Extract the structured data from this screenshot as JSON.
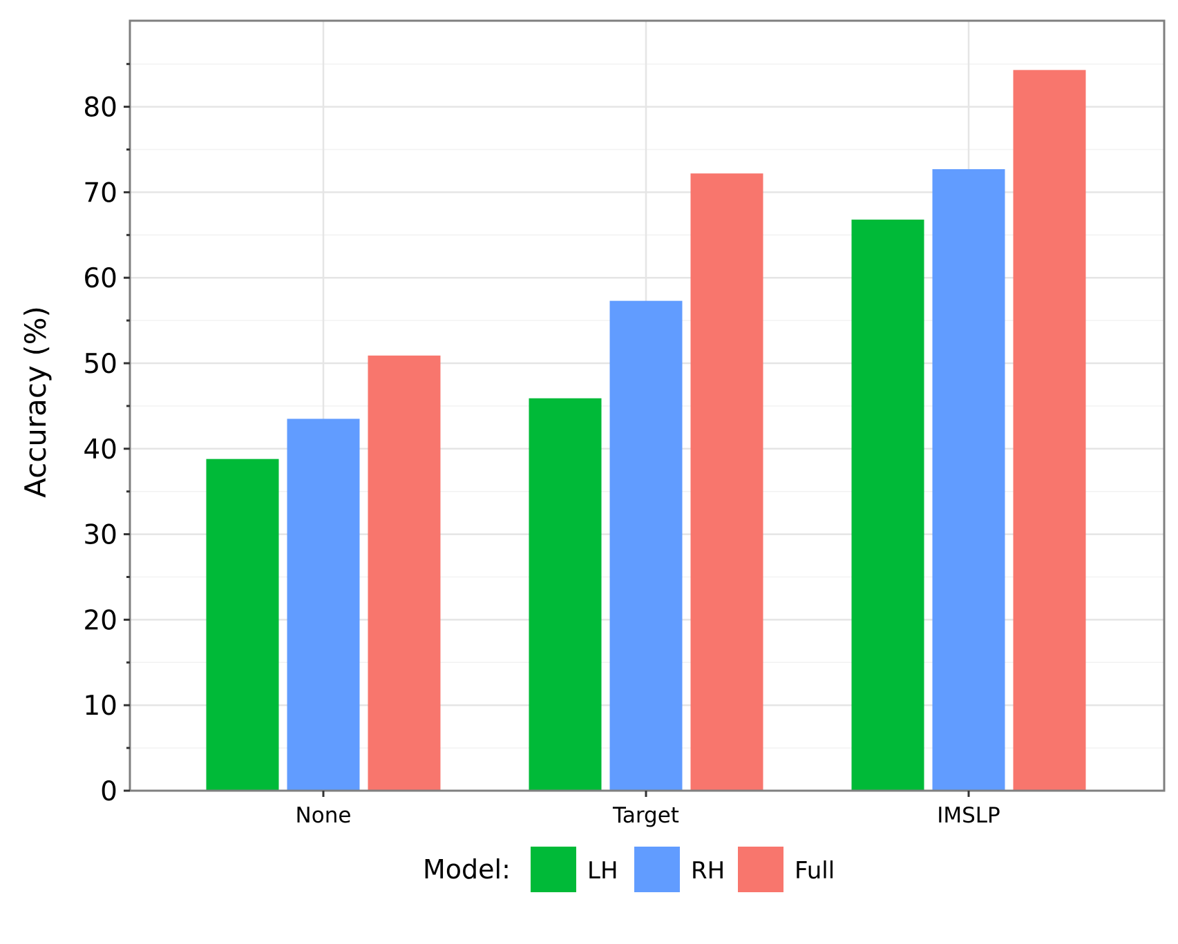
{
  "chart_data": {
    "type": "bar",
    "categories": [
      "None",
      "Target",
      "IMSLP"
    ],
    "series": [
      {
        "name": "LH",
        "color": "#00ba38",
        "values": [
          38.8,
          45.9,
          66.8
        ]
      },
      {
        "name": "RH",
        "color": "#619cff",
        "values": [
          43.5,
          57.3,
          72.7
        ]
      },
      {
        "name": "Full",
        "color": "#f8766d",
        "values": [
          50.9,
          72.2,
          84.3
        ]
      }
    ],
    "ylabel": "Accuracy (%)",
    "xlabel": "",
    "ylim": [
      0,
      90
    ],
    "yticks": [
      "0",
      "10",
      "20",
      "30",
      "40",
      "50",
      "60",
      "70",
      "80"
    ],
    "legend_title": "Model:",
    "legend_position": "bottom",
    "grid": true
  }
}
